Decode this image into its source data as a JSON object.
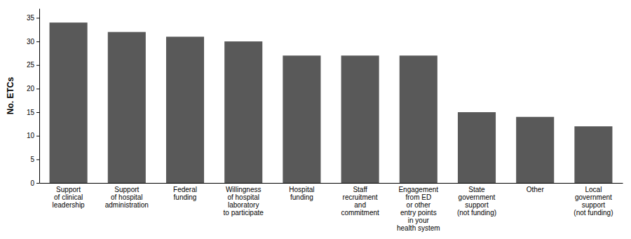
{
  "chart_data": {
    "type": "bar",
    "categories": [
      "Support\nof clinical\nleadership",
      "Support\nof hospital\nadministration",
      "Federal\nfunding",
      "Willingness\nof hospital\nlaboratory\nto participate",
      "Hospital\nfunding",
      "Staff\nrecruitment\nand\ncommitment",
      "Engagement\nfrom ED\nor other\nentry points\nin your\nhealth system",
      "State\ngovernment\nsupport\n(not funding)",
      "Other",
      "Local\ngovernment\nsupport\n(not funding)"
    ],
    "values": [
      34,
      32,
      31,
      30,
      27,
      27,
      27,
      15,
      14,
      12
    ],
    "color": "#595959",
    "ylabel": "No. ETCs",
    "ylim": [
      0,
      37
    ],
    "yticks": [
      0,
      5,
      10,
      15,
      20,
      25,
      30,
      35
    ],
    "grid": false
  }
}
